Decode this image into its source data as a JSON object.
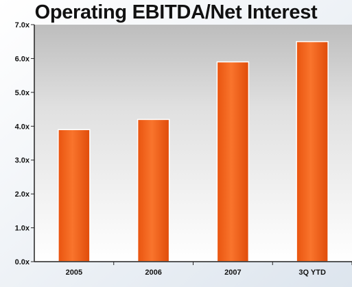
{
  "chart_data": {
    "type": "bar",
    "title": "Operating EBITDA/Net Interest",
    "categories": [
      "2005",
      "2006",
      "2007",
      "3Q YTD"
    ],
    "values": [
      3.9,
      4.2,
      5.9,
      6.5
    ],
    "ylim": [
      0,
      7
    ],
    "yticks": [
      0,
      1,
      2,
      3,
      4,
      5,
      6,
      7
    ],
    "ytick_labels": [
      "0.0x",
      "1.0x",
      "2.0x",
      "3.0x",
      "4.0x",
      "5.0x",
      "6.0x",
      "7.0x"
    ],
    "xlabel": "",
    "ylabel": "",
    "grid": false,
    "legend": "none",
    "bar_color": "#f2621c",
    "plot_background": "#d6d6d6"
  }
}
